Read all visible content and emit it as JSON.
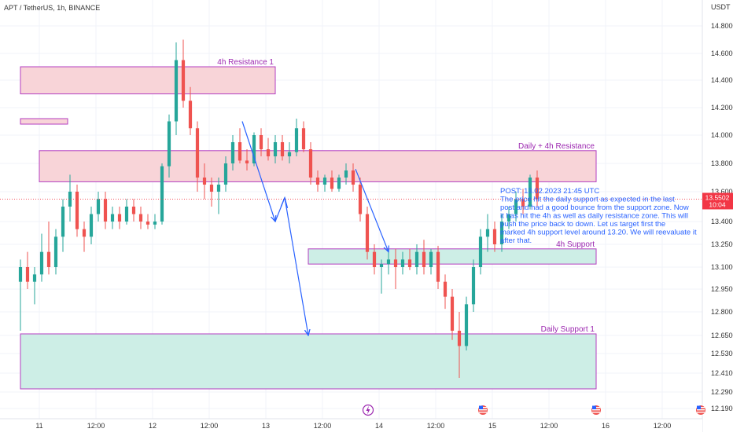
{
  "header": {
    "symbol_line": "APT / TetherUS, 1h, BINANCE",
    "currency": "USDT"
  },
  "price_tag": {
    "price": "13.5502",
    "countdown": "10:04",
    "value": 13.5502,
    "color": "#f23645"
  },
  "zones": [
    {
      "name": "4h Resistance 1",
      "label": "4h Resistance 1",
      "y_low": 14.3,
      "y_high": 14.5,
      "x_start_hours": -52,
      "x_end_hours": 2,
      "fill": "#f8d4d8",
      "border": "#b33ec0",
      "label_color": "#9c27b0"
    },
    {
      "name": "resistance-strip",
      "label": "",
      "y_low": 14.08,
      "y_high": 14.12,
      "x_start_hours": -52,
      "x_end_hours": -42,
      "fill": "#f8d4d8",
      "border": "#b33ec0",
      "label_color": "#9c27b0"
    },
    {
      "name": "Daily + 4h Resistance",
      "label": "Daily + 4h Resistance",
      "y_low": 13.67,
      "y_high": 13.89,
      "x_start_hours": -48,
      "x_end_hours": 70,
      "fill": "#f8d4d8",
      "border": "#b33ec0",
      "label_color": "#9c27b0"
    },
    {
      "name": "4h Support",
      "label": "4h Support",
      "y_low": 13.12,
      "y_high": 13.22,
      "x_start_hours": 9,
      "x_end_hours": 70,
      "fill": "#cdeee6",
      "border": "#b33ec0",
      "label_color": "#9c27b0"
    },
    {
      "name": "Daily Support 1",
      "label": "Daily Support 1",
      "y_low": 12.31,
      "y_high": 12.66,
      "x_start_hours": -52,
      "x_end_hours": 70,
      "fill": "#cdeee6",
      "border": "#b33ec0",
      "label_color": "#9c27b0"
    }
  ],
  "note": {
    "lines": [
      "POST: 13.02.2023 21:45 UTC",
      "The price hit the daily support as expected in the last",
      "post and had a good bounce from the support zone. Now",
      "it has hit the 4h as well as daily resistance zone. This will",
      "push the price back to down. Let us target first the",
      "marked 4h support level around 13.20. We will reevaluate it",
      "after that."
    ],
    "color": "#2962ff"
  },
  "chart_data": {
    "type": "candlestick",
    "title": "APT / TetherUS, 1h, BINANCE",
    "y_axis": {
      "unit": "USDT",
      "ticks": [
        "14.8000",
        "14.6000",
        "14.4000",
        "14.2000",
        "14.0000",
        "13.8000",
        "13.6000",
        "13.4000",
        "13.2500",
        "13.1000",
        "12.9500",
        "12.8000",
        "12.6500",
        "12.5300",
        "12.4100",
        "12.2900",
        "12.1900"
      ],
      "range": [
        12.17,
        14.98
      ]
    },
    "x_axis": {
      "ticks": [
        "11",
        "12:00",
        "12",
        "12:00",
        "13",
        "12:00",
        "14",
        "12:00",
        "15",
        "12:00",
        "16",
        "12:00"
      ],
      "hours_from_13_00": [
        -48,
        -36,
        -24,
        -12,
        0,
        12,
        24,
        36,
        48,
        60,
        72,
        84
      ],
      "range_hours_from_13_00": [
        -52,
        94
      ]
    },
    "candles": [
      {
        "o": 13.0,
        "h": 13.15,
        "l": 12.68,
        "c": 13.1
      },
      {
        "o": 13.1,
        "h": 13.2,
        "l": 12.95,
        "c": 13.0
      },
      {
        "o": 13.0,
        "h": 13.1,
        "l": 12.85,
        "c": 13.05
      },
      {
        "o": 13.05,
        "h": 13.32,
        "l": 13.0,
        "c": 13.2
      },
      {
        "o": 13.2,
        "h": 13.4,
        "l": 13.05,
        "c": 13.1
      },
      {
        "o": 13.1,
        "h": 13.35,
        "l": 13.05,
        "c": 13.3
      },
      {
        "o": 13.3,
        "h": 13.55,
        "l": 13.2,
        "c": 13.5
      },
      {
        "o": 13.5,
        "h": 13.72,
        "l": 13.4,
        "c": 13.6
      },
      {
        "o": 13.6,
        "h": 13.65,
        "l": 13.3,
        "c": 13.35
      },
      {
        "o": 13.35,
        "h": 13.4,
        "l": 13.2,
        "c": 13.3
      },
      {
        "o": 13.3,
        "h": 13.5,
        "l": 13.25,
        "c": 13.45
      },
      {
        "o": 13.45,
        "h": 13.6,
        "l": 13.4,
        "c": 13.55
      },
      {
        "o": 13.55,
        "h": 13.6,
        "l": 13.35,
        "c": 13.4
      },
      {
        "o": 13.4,
        "h": 13.5,
        "l": 13.35,
        "c": 13.45
      },
      {
        "o": 13.45,
        "h": 13.5,
        "l": 13.35,
        "c": 13.4
      },
      {
        "o": 13.4,
        "h": 13.55,
        "l": 13.38,
        "c": 13.5
      },
      {
        "o": 13.5,
        "h": 13.55,
        "l": 13.4,
        "c": 13.45
      },
      {
        "o": 13.45,
        "h": 13.5,
        "l": 13.35,
        "c": 13.4
      },
      {
        "o": 13.4,
        "h": 13.45,
        "l": 13.35,
        "c": 13.38
      },
      {
        "o": 13.38,
        "h": 13.45,
        "l": 13.35,
        "c": 13.4
      },
      {
        "o": 13.4,
        "h": 13.8,
        "l": 13.38,
        "c": 13.78
      },
      {
        "o": 13.78,
        "h": 14.15,
        "l": 13.7,
        "c": 14.1
      },
      {
        "o": 14.1,
        "h": 14.68,
        "l": 14.0,
        "c": 14.55
      },
      {
        "o": 14.55,
        "h": 14.7,
        "l": 14.2,
        "c": 14.25
      },
      {
        "o": 14.25,
        "h": 14.35,
        "l": 14.0,
        "c": 14.05
      },
      {
        "o": 14.05,
        "h": 14.1,
        "l": 13.6,
        "c": 13.7
      },
      {
        "o": 13.7,
        "h": 13.8,
        "l": 13.55,
        "c": 13.65
      },
      {
        "o": 13.65,
        "h": 13.7,
        "l": 13.5,
        "c": 13.6
      },
      {
        "o": 13.6,
        "h": 13.7,
        "l": 13.45,
        "c": 13.65
      },
      {
        "o": 13.65,
        "h": 13.85,
        "l": 13.6,
        "c": 13.8
      },
      {
        "o": 13.8,
        "h": 14.0,
        "l": 13.75,
        "c": 13.95
      },
      {
        "o": 13.95,
        "h": 14.05,
        "l": 13.8,
        "c": 13.82
      },
      {
        "o": 13.82,
        "h": 13.9,
        "l": 13.75,
        "c": 13.8
      },
      {
        "o": 13.8,
        "h": 14.02,
        "l": 13.78,
        "c": 14.0
      },
      {
        "o": 14.0,
        "h": 14.05,
        "l": 13.85,
        "c": 13.9
      },
      {
        "o": 13.9,
        "h": 13.98,
        "l": 13.82,
        "c": 13.85
      },
      {
        "o": 13.85,
        "h": 14.0,
        "l": 13.8,
        "c": 13.95
      },
      {
        "o": 13.95,
        "h": 14.0,
        "l": 13.82,
        "c": 13.85
      },
      {
        "o": 13.85,
        "h": 13.95,
        "l": 13.8,
        "c": 13.88
      },
      {
        "o": 13.88,
        "h": 14.12,
        "l": 13.85,
        "c": 14.05
      },
      {
        "o": 14.05,
        "h": 14.1,
        "l": 13.88,
        "c": 13.9
      },
      {
        "o": 13.9,
        "h": 13.95,
        "l": 13.65,
        "c": 13.7
      },
      {
        "o": 13.7,
        "h": 13.75,
        "l": 13.6,
        "c": 13.65
      },
      {
        "o": 13.65,
        "h": 13.72,
        "l": 13.6,
        "c": 13.7
      },
      {
        "o": 13.7,
        "h": 13.75,
        "l": 13.6,
        "c": 13.62
      },
      {
        "o": 13.62,
        "h": 13.72,
        "l": 13.6,
        "c": 13.7
      },
      {
        "o": 13.7,
        "h": 13.8,
        "l": 13.65,
        "c": 13.75
      },
      {
        "o": 13.75,
        "h": 13.8,
        "l": 13.6,
        "c": 13.65
      },
      {
        "o": 13.65,
        "h": 13.7,
        "l": 13.4,
        "c": 13.45
      },
      {
        "o": 13.45,
        "h": 13.5,
        "l": 13.15,
        "c": 13.2
      },
      {
        "o": 13.2,
        "h": 13.25,
        "l": 13.05,
        "c": 13.1
      },
      {
        "o": 13.1,
        "h": 13.15,
        "l": 12.92,
        "c": 13.12
      },
      {
        "o": 13.12,
        "h": 13.22,
        "l": 13.05,
        "c": 13.15
      },
      {
        "o": 13.15,
        "h": 13.22,
        "l": 12.95,
        "c": 13.1
      },
      {
        "o": 13.1,
        "h": 13.2,
        "l": 13.05,
        "c": 13.15
      },
      {
        "o": 13.15,
        "h": 13.22,
        "l": 13.08,
        "c": 13.1
      },
      {
        "o": 13.1,
        "h": 13.25,
        "l": 13.05,
        "c": 13.2
      },
      {
        "o": 13.2,
        "h": 13.28,
        "l": 13.05,
        "c": 13.1
      },
      {
        "o": 13.1,
        "h": 13.22,
        "l": 13.05,
        "c": 13.2
      },
      {
        "o": 13.2,
        "h": 13.24,
        "l": 12.95,
        "c": 13.0
      },
      {
        "o": 13.0,
        "h": 13.05,
        "l": 12.82,
        "c": 12.9
      },
      {
        "o": 12.9,
        "h": 12.95,
        "l": 12.62,
        "c": 12.68
      },
      {
        "o": 12.68,
        "h": 12.8,
        "l": 12.38,
        "c": 12.58
      },
      {
        "o": 12.58,
        "h": 12.9,
        "l": 12.55,
        "c": 12.85
      },
      {
        "o": 12.85,
        "h": 13.15,
        "l": 12.8,
        "c": 13.1
      },
      {
        "o": 13.1,
        "h": 13.35,
        "l": 13.05,
        "c": 13.3
      },
      {
        "o": 13.3,
        "h": 13.45,
        "l": 13.2,
        "c": 13.35
      },
      {
        "o": 13.35,
        "h": 13.4,
        "l": 13.2,
        "c": 13.25
      },
      {
        "o": 13.25,
        "h": 13.45,
        "l": 13.2,
        "c": 13.4
      },
      {
        "o": 13.4,
        "h": 13.5,
        "l": 13.35,
        "c": 13.45
      },
      {
        "o": 13.45,
        "h": 13.6,
        "l": 13.4,
        "c": 13.55
      },
      {
        "o": 13.55,
        "h": 13.62,
        "l": 13.45,
        "c": 13.5
      },
      {
        "o": 13.5,
        "h": 13.72,
        "l": 13.48,
        "c": 13.7
      },
      {
        "o": 13.7,
        "h": 13.75,
        "l": 13.5,
        "c": 13.55
      }
    ],
    "first_candle_hours_from_13_00": -52,
    "colors": {
      "up": "#26a69a",
      "down": "#ef5350"
    },
    "arrows": [
      {
        "from": [
          -5,
          14.1
        ],
        "to": [
          2,
          13.4
        ]
      },
      {
        "from": [
          2,
          13.4
        ],
        "to": [
          4,
          13.56
        ]
      },
      {
        "from": [
          4,
          13.56
        ],
        "to": [
          9,
          12.65
        ]
      },
      {
        "from": [
          19,
          13.76
        ],
        "to": [
          26,
          13.2
        ]
      }
    ],
    "events": [
      {
        "icon": "lightning-icon",
        "hours_from_13_00": 24
      },
      {
        "icon": "us-flag-icon",
        "hours_from_13_00": 48
      },
      {
        "icon": "us-flag-icon",
        "hours_from_13_00": 72
      },
      {
        "icon": "us-flag-icon",
        "hours_from_13_00": 96
      }
    ]
  }
}
